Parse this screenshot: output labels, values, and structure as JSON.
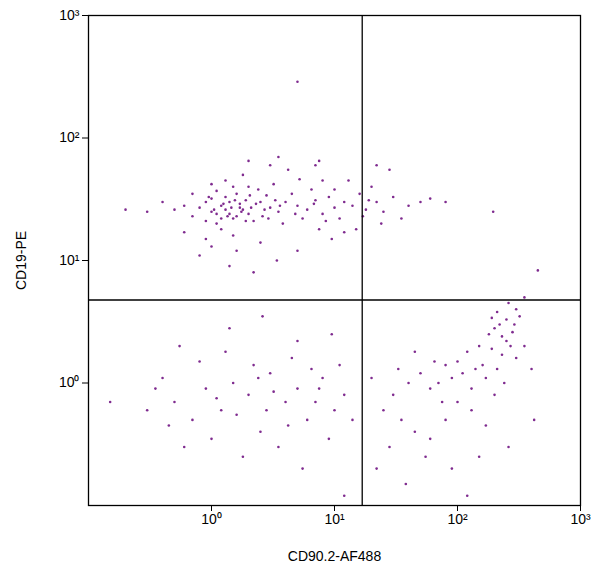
{
  "chart_data": {
    "type": "scatter",
    "x_label": "CD90.2-AF488",
    "y_label": "CD19-PE",
    "log": true,
    "color": "#7f2b8f",
    "marker": "dot",
    "xlim": [
      0.1,
      1000
    ],
    "ylim": [
      0.1,
      1000
    ],
    "xticks": [
      {
        "value": 1,
        "label": "10⁰"
      },
      {
        "value": 10,
        "label": "10¹"
      },
      {
        "value": 100,
        "label": "10²"
      },
      {
        "value": 1000,
        "label": "10³"
      }
    ],
    "yticks": [
      {
        "value": 1,
        "label": "10⁰"
      },
      {
        "value": 10,
        "label": "10¹"
      },
      {
        "value": 100,
        "label": "10²"
      },
      {
        "value": 1000,
        "label": "10³"
      }
    ],
    "quadrant_gates": {
      "x": 16.8,
      "y": 4.76
    },
    "x": [
      1,
      1.2,
      1.5,
      0.9,
      1.3,
      1.8,
      2,
      1.1,
      0.8,
      1.6,
      2.5,
      3,
      1.4,
      1.7,
      1,
      0.7,
      0.6,
      2.2,
      2.8,
      3.5,
      4,
      5,
      6,
      7,
      8,
      10,
      12,
      1.2,
      1.5,
      0.9,
      2,
      1.3,
      1.8,
      2.4,
      3.2,
      0.5,
      0.4,
      0.3,
      0.2,
      1.1,
      1.9,
      2.1,
      2.6,
      3.8,
      4.5,
      5.5,
      6.5,
      9,
      11,
      14,
      16,
      18,
      22,
      25,
      30,
      40,
      50,
      20,
      15,
      13,
      9.5,
      7.5,
      5.2,
      4.2,
      3,
      2.5,
      1.6,
      1,
      0.8,
      0.6,
      1.4,
      2.2,
      3.4,
      5,
      0.7,
      1,
      1.5,
      1.2,
      1.3,
      1.4,
      1.6,
      1.7,
      1.9,
      2.3,
      2.7,
      3.3,
      0.9,
      1.1,
      1.25,
      1.45,
      1.05,
      1.35,
      1.55,
      1.75,
      0.95,
      2.05,
      2.9,
      3.6,
      4.8,
      6.8,
      8.5,
      5,
      17,
      19,
      24,
      35,
      12,
      10,
      8,
      7,
      3.5,
      2,
      195,
      7.5,
      28,
      22,
      60,
      80,
      100,
      120,
      150,
      180,
      200,
      220,
      250,
      280,
      300,
      320,
      350,
      250,
      190,
      160,
      140,
      110,
      90,
      80,
      70,
      60,
      50,
      40,
      30,
      25,
      20,
      35,
      45,
      60,
      80,
      100,
      130,
      170,
      200,
      240,
      300,
      350,
      400,
      420,
      260,
      150,
      90,
      55,
      28,
      22,
      38,
      120,
      210,
      230,
      270,
      170,
      130,
      75,
      65,
      45,
      33,
      190,
      260,
      290,
      230,
      210,
      450,
      0.5,
      0.7,
      0.9,
      1.2,
      1.5,
      2,
      2.5,
      3,
      4,
      5,
      6,
      8,
      10,
      12,
      0.4,
      0.6,
      0.8,
      1,
      1.3,
      1.8,
      2.2,
      2.8,
      3.5,
      4.5,
      5.5,
      7,
      9,
      11,
      14,
      0.3,
      0.35,
      0.45,
      0.15,
      1.1,
      1.6,
      2.4,
      3.2,
      4.2,
      6.5,
      7.5,
      0.55,
      1.4,
      2.6,
      5,
      9.5,
      12
    ],
    "values": [
      25,
      28,
      22,
      30,
      33,
      26,
      24,
      20,
      27,
      35,
      30,
      27,
      24,
      29,
      32,
      23,
      28,
      21,
      34,
      25,
      30,
      28,
      26,
      31,
      24,
      27,
      30,
      18,
      16,
      15,
      40,
      45,
      50,
      38,
      42,
      26,
      30,
      25,
      26,
      37,
      31,
      27,
      23,
      20,
      35,
      22,
      38,
      33,
      22,
      28,
      35,
      26,
      30,
      25,
      33,
      28,
      30,
      40,
      18,
      45,
      15,
      18,
      46,
      55,
      60,
      14,
      12,
      13,
      11,
      17,
      9,
      8,
      10,
      12,
      35,
      42,
      40,
      22,
      26,
      30,
      23,
      27,
      21,
      29,
      26,
      31,
      21,
      24,
      29,
      27,
      26,
      23,
      31,
      25,
      33,
      34,
      22,
      28,
      24,
      29,
      21,
      288,
      23,
      31,
      20,
      22,
      17,
      38,
      45,
      60,
      70,
      65,
      25,
      65,
      55,
      60,
      32,
      30,
      1.5,
      1.8,
      2,
      2.5,
      2.8,
      3,
      3.3,
      2.6,
      4,
      3.5,
      5,
      2.2,
      1.9,
      1.4,
      1.3,
      1.2,
      1.1,
      1.4,
      1,
      0.9,
      1.2,
      1,
      0.8,
      0.6,
      1.1,
      0.5,
      0.4,
      0.35,
      0.5,
      0.7,
      0.6,
      0.45,
      0.8,
      1,
      1.6,
      2,
      1.3,
      0.5,
      0.3,
      0.25,
      0.2,
      0.25,
      0.3,
      0.2,
      0.15,
      0.12,
      1.3,
      1.7,
      2,
      1.1,
      0.9,
      0.7,
      1.5,
      1.8,
      1.3,
      3.4,
      4.5,
      3,
      2.4,
      3.8,
      8.3,
      0.7,
      0.5,
      0.9,
      0.6,
      1,
      0.8,
      0.4,
      1.2,
      0.7,
      0.9,
      0.5,
      1.1,
      0.6,
      0.8,
      1.1,
      0.3,
      1.5,
      0.35,
      1.8,
      0.25,
      1.4,
      0.6,
      0.3,
      1.6,
      0.2,
      0.7,
      0.35,
      1.4,
      0.5,
      0.6,
      0.9,
      0.45,
      0.7,
      0.75,
      0.55,
      1.1,
      0.85,
      0.45,
      1.3,
      0.9,
      2,
      2.8,
      3.5,
      2.2,
      2.5,
      0.12
    ]
  }
}
